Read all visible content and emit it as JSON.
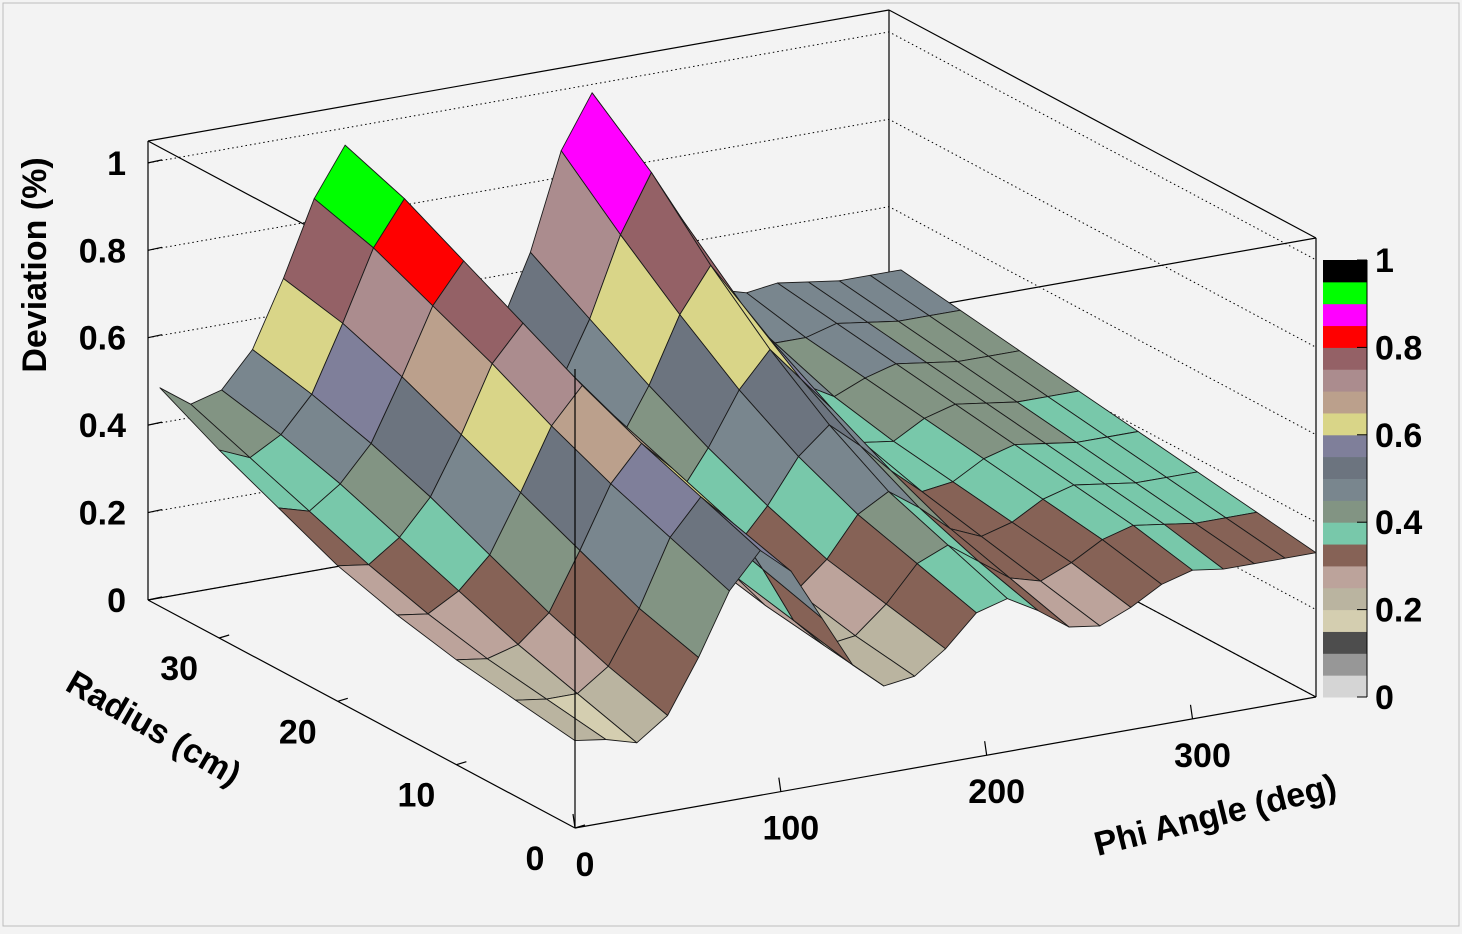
{
  "chart_data": {
    "type": "surface",
    "title": "",
    "zlabel": "Deviation (%)",
    "xlabel": "Phi Angle (deg)",
    "ylabel": "Radius (cm)",
    "xlim": [
      0,
      360
    ],
    "ylim": [
      0,
      36
    ],
    "zlim": [
      0,
      1.05
    ],
    "x_ticks": [
      "0",
      "100",
      "200",
      "300"
    ],
    "y_ticks": [
      "0",
      "10",
      "20",
      "30"
    ],
    "z_ticks": [
      "0",
      "0.2",
      "0.4",
      "0.6",
      "0.8",
      "1"
    ],
    "colorbar": {
      "range": [
        0,
        1
      ],
      "tick_labels": [
        "0",
        "0.2",
        "0.4",
        "0.6",
        "0.8",
        "1"
      ],
      "colors": [
        "#d5d5d5",
        "#979797",
        "#4d4d4d",
        "#d4ceb0",
        "#bab4a0",
        "#bca39b",
        "#866256",
        "#78c8aa",
        "#829483",
        "#79868e",
        "#6c747f",
        "#7f7f9a",
        "#d9d588",
        "#bba08c",
        "#ab8c8e",
        "#946166",
        "#ff0000",
        "#ff00ff",
        "#00ff00",
        "#000000"
      ]
    },
    "surface": {
      "phi_values": [
        0,
        15,
        30,
        45,
        60,
        75,
        90,
        105,
        120,
        135,
        150,
        165,
        180,
        195,
        210,
        225,
        240,
        255,
        270,
        285,
        300,
        315,
        330,
        345,
        360
      ],
      "radius_values": [
        0,
        5,
        10,
        15,
        20,
        25,
        30,
        35
      ],
      "z_by_radius": [
        [
          0.2,
          0.19,
          0.17,
          0.22,
          0.34,
          0.48,
          0.56,
          0.5,
          0.38,
          0.26,
          0.2,
          0.21,
          0.26,
          0.33,
          0.35,
          0.31,
          0.26,
          0.25,
          0.28,
          0.32,
          0.34,
          0.33,
          0.33,
          0.33,
          0.33
        ],
        [
          0.22,
          0.21,
          0.21,
          0.26,
          0.38,
          0.53,
          0.61,
          0.54,
          0.42,
          0.29,
          0.22,
          0.23,
          0.29,
          0.37,
          0.4,
          0.35,
          0.3,
          0.28,
          0.31,
          0.35,
          0.37,
          0.36,
          0.35,
          0.35,
          0.35
        ],
        [
          0.24,
          0.23,
          0.25,
          0.31,
          0.44,
          0.58,
          0.66,
          0.59,
          0.46,
          0.32,
          0.24,
          0.26,
          0.32,
          0.41,
          0.45,
          0.4,
          0.34,
          0.31,
          0.33,
          0.37,
          0.39,
          0.38,
          0.37,
          0.37,
          0.37
        ],
        [
          0.27,
          0.26,
          0.3,
          0.37,
          0.5,
          0.64,
          0.72,
          0.64,
          0.5,
          0.36,
          0.27,
          0.29,
          0.37,
          0.47,
          0.53,
          0.47,
          0.4,
          0.34,
          0.35,
          0.39,
          0.41,
          0.4,
          0.39,
          0.39,
          0.39
        ],
        [
          0.31,
          0.3,
          0.35,
          0.43,
          0.56,
          0.71,
          0.79,
          0.7,
          0.55,
          0.41,
          0.31,
          0.33,
          0.43,
          0.55,
          0.63,
          0.55,
          0.47,
          0.38,
          0.37,
          0.41,
          0.43,
          0.42,
          0.41,
          0.41,
          0.41
        ],
        [
          0.37,
          0.35,
          0.4,
          0.48,
          0.62,
          0.77,
          0.86,
          0.76,
          0.6,
          0.46,
          0.36,
          0.38,
          0.5,
          0.65,
          0.75,
          0.65,
          0.55,
          0.44,
          0.4,
          0.43,
          0.45,
          0.44,
          0.43,
          0.43,
          0.43
        ],
        [
          0.43,
          0.4,
          0.44,
          0.52,
          0.67,
          0.83,
          0.93,
          0.82,
          0.65,
          0.5,
          0.41,
          0.44,
          0.58,
          0.76,
          0.89,
          0.77,
          0.64,
          0.52,
          0.45,
          0.45,
          0.47,
          0.46,
          0.45,
          0.45,
          0.45
        ],
        [
          0.5,
          0.45,
          0.47,
          0.55,
          0.7,
          0.87,
          0.98,
          0.87,
          0.7,
          0.54,
          0.45,
          0.5,
          0.66,
          0.88,
          1.0,
          0.88,
          0.72,
          0.58,
          0.5,
          0.48,
          0.49,
          0.48,
          0.47,
          0.47,
          0.47
        ]
      ]
    }
  }
}
